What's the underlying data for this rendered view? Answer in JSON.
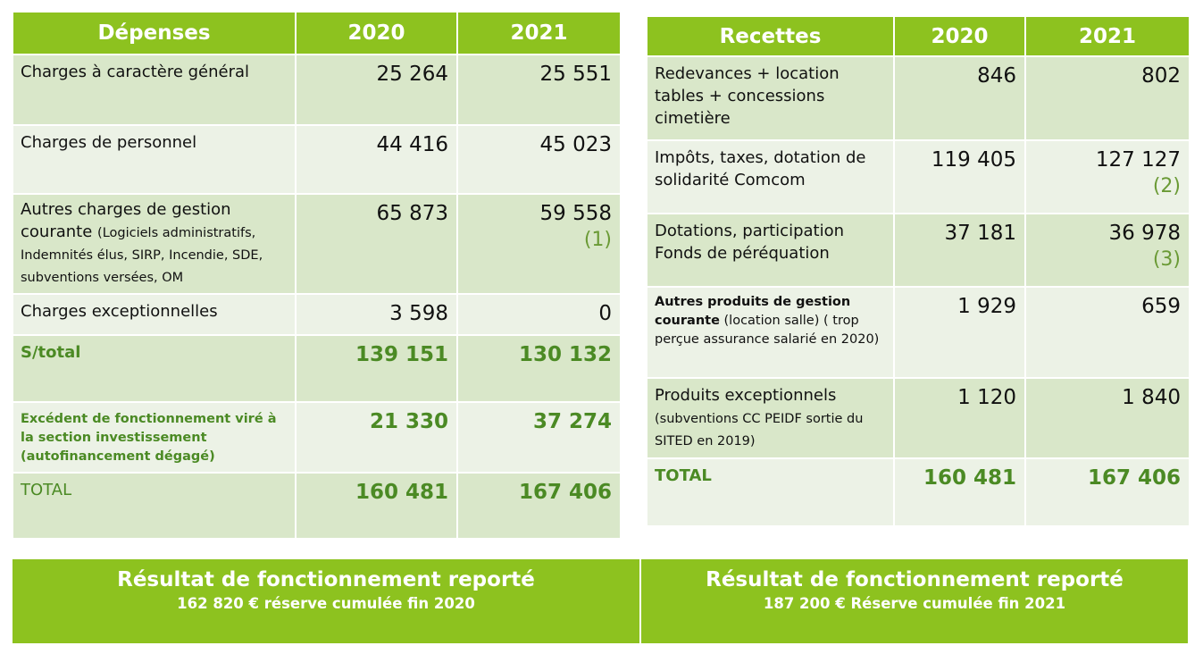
{
  "depenses": {
    "headers": [
      "Dépenses",
      "2020",
      "2021"
    ],
    "rows": [
      {
        "label": "Charges à caractère général",
        "v2020": "25 264",
        "v2021": "25 551"
      },
      {
        "label": "Charges de personnel",
        "v2020": "44 416",
        "v2021": "45 023"
      },
      {
        "label": "Autres charges de gestion courante",
        "detail": "(Logiciels administratifs, Indemnités élus, SIRP, Incendie, SDE, subventions versées, OM",
        "v2020": "65 873",
        "v2021": "59 558",
        "note2021": "(1)"
      },
      {
        "label": "Charges exceptionnelles",
        "v2020": "3 598",
        "v2021": "0"
      },
      {
        "label": "S/total",
        "v2020": "139 151",
        "v2021": "130 132"
      },
      {
        "label": "Excédent de fonctionnement viré à la section investissement (autofinancement dégagé)",
        "v2020": "21 330",
        "v2021": "37 274"
      },
      {
        "label": "TOTAL",
        "v2020": "160 481",
        "v2021": "167 406"
      }
    ]
  },
  "recettes": {
    "headers": [
      "Recettes",
      "2020",
      "2021"
    ],
    "rows": [
      {
        "label": "Redevances + location tables + concessions cimetière",
        "v2020": "846",
        "v2021": "802"
      },
      {
        "label": "Impôts, taxes, dotation de solidarité Comcom",
        "v2020": "119 405",
        "v2021": "127 127",
        "note2021": "(2)"
      },
      {
        "label": "Dotations, participation Fonds de péréquation",
        "v2020": "37 181",
        "v2021": "36 978",
        "note2021": "(3)"
      },
      {
        "label": "Autres produits de gestion courante",
        "detail": "(location  salle)  ( trop perçue assurance salarié en 2020)",
        "v2020": "1 929",
        "v2021": "659"
      },
      {
        "label": "Produits exceptionnels",
        "detail": "(subventions  CC PEIDF sortie du SITED en 2019)",
        "v2020": "1 120",
        "v2021": "1 840"
      },
      {
        "label": "TOTAL",
        "v2020": "160 481",
        "v2021": "167 406"
      }
    ]
  },
  "resultats": [
    {
      "title": "Résultat de fonctionnement reporté",
      "subtitle": "162 820 €  réserve cumulée fin 2020"
    },
    {
      "title": "Résultat de fonctionnement reporté",
      "subtitle": "187 200 € Réserve cumulée fin 2021"
    }
  ],
  "colors": {
    "header": "#8dc21f",
    "dark_row": "#d9e7c9",
    "light_row": "#ecf2e6",
    "green_text": "#4b8a24"
  }
}
